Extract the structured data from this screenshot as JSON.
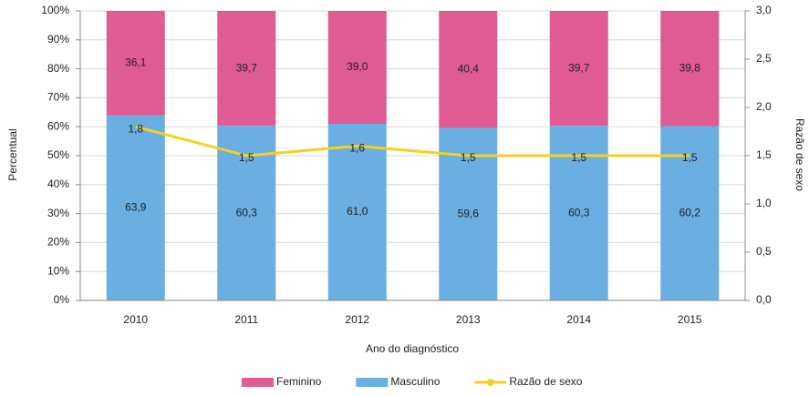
{
  "chart_data": {
    "type": "bar",
    "stacked": true,
    "xlabel": "Ano do diagnóstico",
    "ylabel": "Percentual",
    "y2label": "Razão de sexo",
    "categories": [
      "2010",
      "2011",
      "2012",
      "2013",
      "2014",
      "2015"
    ],
    "series": [
      {
        "name": "Feminino",
        "type": "bar",
        "color": "#de5b94",
        "values": [
          36.1,
          39.7,
          39.0,
          40.4,
          39.7,
          39.8
        ],
        "value_labels": [
          "36,1",
          "39,7",
          "39,0",
          "40,4",
          "39,7",
          "39,8"
        ]
      },
      {
        "name": "Masculino",
        "type": "bar",
        "color": "#6aaee2",
        "values": [
          63.9,
          60.3,
          61.0,
          59.6,
          60.3,
          60.2
        ],
        "value_labels": [
          "63,9",
          "60,3",
          "61,0",
          "59,6",
          "60,3",
          "60,2"
        ]
      },
      {
        "name": "Razão de sexo",
        "type": "line",
        "axis": "y2",
        "color": "#f2d21c",
        "values": [
          1.8,
          1.5,
          1.6,
          1.5,
          1.5,
          1.5
        ],
        "value_labels": [
          "1,8",
          "1,5",
          "1,6",
          "1,5",
          "1,5",
          "1,5"
        ]
      }
    ],
    "ylim": [
      0,
      100
    ],
    "yticks": [
      {
        "value": 0,
        "label": "0%"
      },
      {
        "value": 10,
        "label": "10%"
      },
      {
        "value": 20,
        "label": "20%"
      },
      {
        "value": 30,
        "label": "30%"
      },
      {
        "value": 40,
        "label": "40%"
      },
      {
        "value": 50,
        "label": "50%"
      },
      {
        "value": 60,
        "label": "60%"
      },
      {
        "value": 70,
        "label": "70%"
      },
      {
        "value": 80,
        "label": "80%"
      },
      {
        "value": 90,
        "label": "90%"
      },
      {
        "value": 100,
        "label": "100%"
      }
    ],
    "y2lim": [
      0,
      3
    ],
    "y2ticks": [
      {
        "value": 0,
        "label": "0,0"
      },
      {
        "value": 0.5,
        "label": "0,5"
      },
      {
        "value": 1,
        "label": "1,0"
      },
      {
        "value": 1.5,
        "label": "1,5"
      },
      {
        "value": 2,
        "label": "2,0"
      },
      {
        "value": 2.5,
        "label": "2,5"
      },
      {
        "value": 3,
        "label": "3,0"
      }
    ],
    "grid": true,
    "legend": "bottom"
  }
}
